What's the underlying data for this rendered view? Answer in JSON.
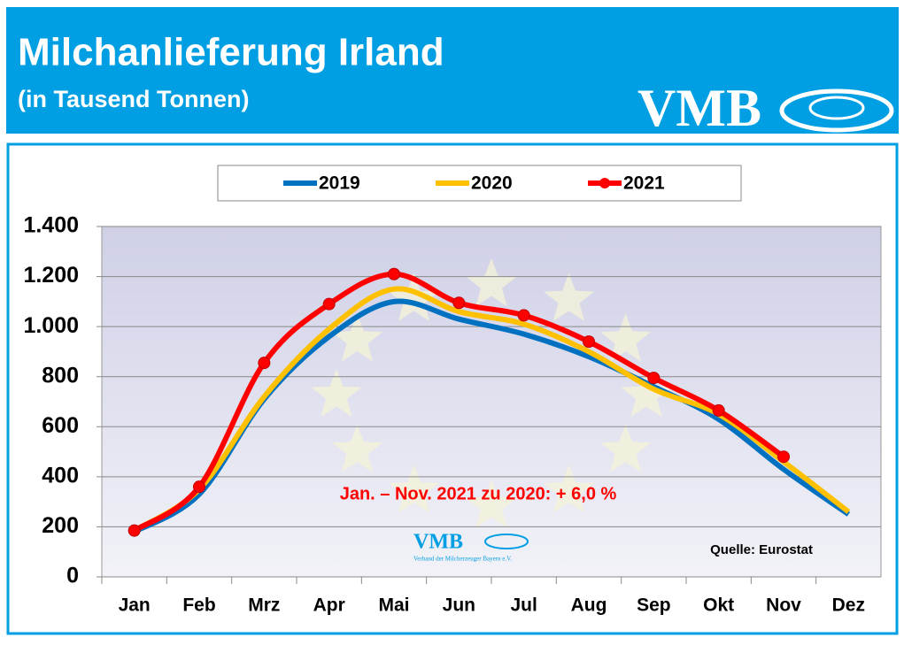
{
  "chart_data": {
    "type": "line",
    "title": "Milchanlieferung Irland",
    "subtitle": "(in Tausend Tonnen)",
    "logo": "VMB",
    "annotation": "Jan. – Nov. 2021 zu 2020: + 6,0 %",
    "source": "Quelle: Eurostat",
    "watermark": {
      "logo": "VMB",
      "text": "Verband der Milcherzeuger Bayern e.V."
    },
    "categories": [
      "Jan",
      "Feb",
      "Mrz",
      "Apr",
      "Mai",
      "Jun",
      "Jul",
      "Aug",
      "Sep",
      "Okt",
      "Nov",
      "Dez"
    ],
    "series": [
      {
        "name": "2019",
        "color": "#0070c0",
        "values": [
          180,
          330,
          710,
          960,
          1100,
          1030,
          970,
          880,
          760,
          630,
          430,
          250
        ]
      },
      {
        "name": "2020",
        "color": "#ffc000",
        "values": [
          185,
          350,
          720,
          990,
          1150,
          1060,
          1010,
          900,
          750,
          650,
          460,
          260
        ]
      },
      {
        "name": "2021",
        "color": "#ff0000",
        "values": [
          185,
          360,
          855,
          1090,
          1210,
          1095,
          1045,
          940,
          795,
          665,
          480,
          null
        ],
        "markers": true
      }
    ],
    "ylim": [
      0,
      1400
    ],
    "yticks": [
      0,
      200,
      400,
      600,
      800,
      {
        "value": 1000,
        "label": "1.000"
      },
      {
        "value": 1200,
        "label": "1.200"
      },
      {
        "value": 1400,
        "label": "1.400"
      }
    ],
    "grid": true
  }
}
